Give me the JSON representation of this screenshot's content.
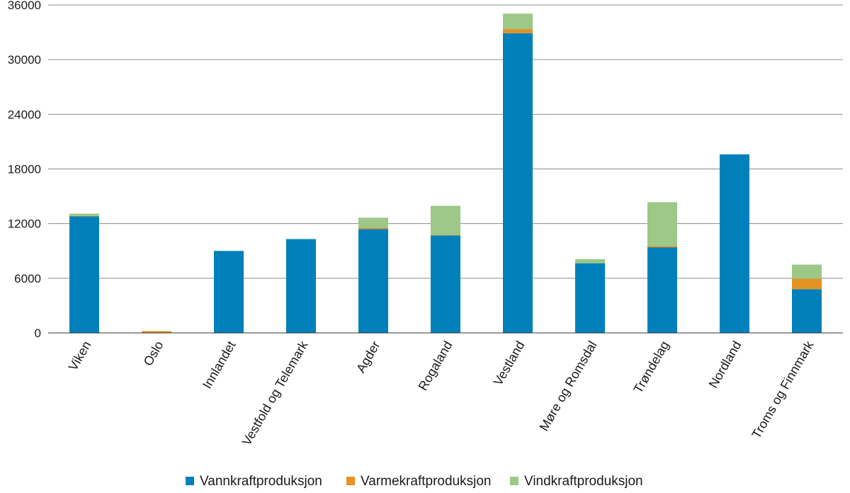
{
  "chart_data": {
    "type": "bar",
    "stacked": true,
    "categories": [
      "Viken",
      "Oslo",
      "Innlandet",
      "Vestfold og Telemark",
      "Agder",
      "Rogaland",
      "Vestland",
      "Møre og Romsdal",
      "Trøndelag",
      "Nordland",
      "Troms og Finnmark"
    ],
    "series": [
      {
        "name": "Vannkraftproduksjon",
        "color": "#0080bb",
        "values": [
          12800,
          0,
          9000,
          10300,
          11400,
          10700,
          32900,
          7650,
          9400,
          19600,
          4800
        ]
      },
      {
        "name": "Varmekraftproduksjon",
        "color": "#e39324",
        "values": [
          50,
          200,
          0,
          0,
          150,
          50,
          450,
          0,
          150,
          0,
          1150
        ]
      },
      {
        "name": "Vindkraftproduksjon",
        "color": "#9dc887",
        "values": [
          250,
          0,
          0,
          0,
          1100,
          3200,
          1700,
          450,
          4800,
          0,
          1550
        ]
      }
    ],
    "yticks": [
      0,
      6000,
      12000,
      18000,
      24000,
      30000,
      36000
    ],
    "ylim": [
      0,
      36000
    ],
    "grid": true,
    "legend_position": "bottom"
  }
}
